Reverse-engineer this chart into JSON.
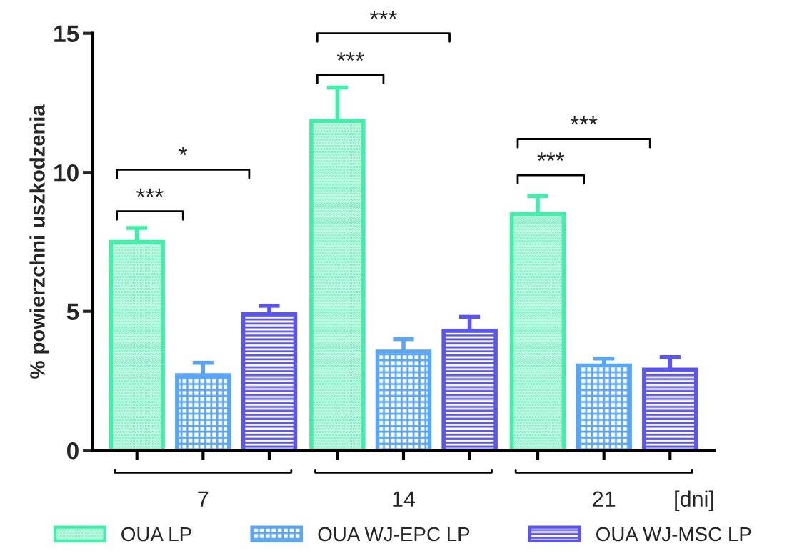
{
  "chart_data": {
    "type": "bar",
    "ylabel": "% powierzchni uszkodzenia",
    "xlabel": "[dni]",
    "categories": [
      "7",
      "14",
      "21"
    ],
    "series": [
      {
        "name": "OUA LP",
        "color": "#3ef0a8",
        "values": [
          7.5,
          11.85,
          8.5
        ],
        "errors": [
          [
            7.5,
            8.0
          ],
          [
            11.85,
            13.05
          ],
          [
            8.5,
            9.15
          ]
        ]
      },
      {
        "name": "OUA WJ-EPC LP",
        "color": "#5aa6f5",
        "values": [
          2.7,
          3.55,
          3.05
        ],
        "errors": [
          [
            2.7,
            3.15
          ],
          [
            3.55,
            4.0
          ],
          [
            3.05,
            3.3
          ]
        ]
      },
      {
        "name": "OUA WJ-MSC LP",
        "color": "#5a55f0",
        "values": [
          4.9,
          4.3,
          2.9
        ],
        "errors": [
          [
            4.9,
            5.2
          ],
          [
            4.3,
            4.8
          ],
          [
            2.9,
            3.35
          ]
        ]
      }
    ],
    "ylim": [
      0,
      15
    ],
    "yticks": [
      0,
      5,
      10,
      15
    ],
    "grid": false,
    "legend": "bottom",
    "annotations": [
      "***",
      "*",
      "***",
      "***",
      "***",
      "***"
    ]
  }
}
